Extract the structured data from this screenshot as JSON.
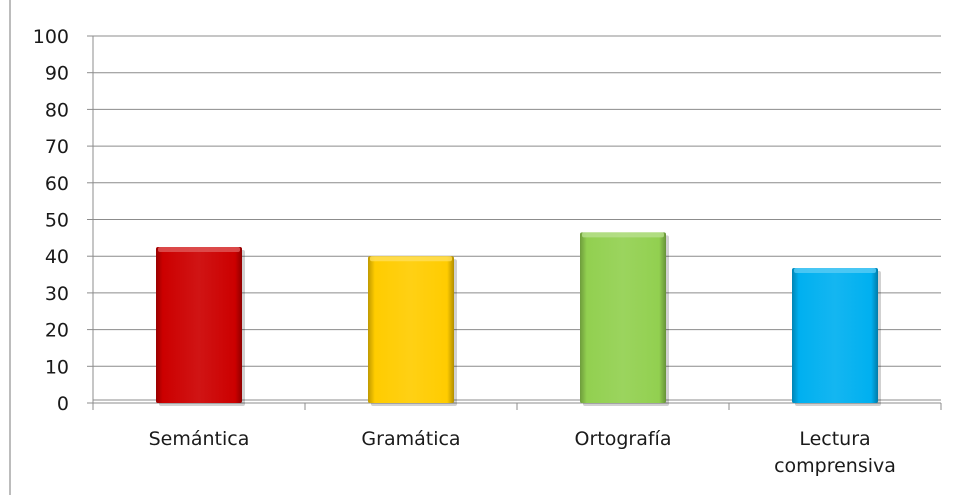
{
  "chart_data": {
    "type": "bar",
    "title": "",
    "xlabel": "",
    "ylabel": "",
    "categories": [
      "Semántica",
      "Gramática",
      "Ortografía",
      "Lectura comprensiva"
    ],
    "category_lines": [
      [
        "Semántica"
      ],
      [
        "Gramática"
      ],
      [
        "Ortografía"
      ],
      [
        "Lectura",
        "comprensiva"
      ]
    ],
    "values": [
      42.5,
      40,
      46.5,
      36.8
    ],
    "colors": [
      "#cc0000",
      "#ffcc00",
      "#92d050",
      "#00b0f0"
    ],
    "ylim": [
      0,
      100
    ],
    "yticks": [
      "0",
      "10",
      "20",
      "30",
      "40",
      "50",
      "60",
      "70",
      "80",
      "90",
      "100"
    ],
    "grid": true,
    "legend": "none"
  }
}
